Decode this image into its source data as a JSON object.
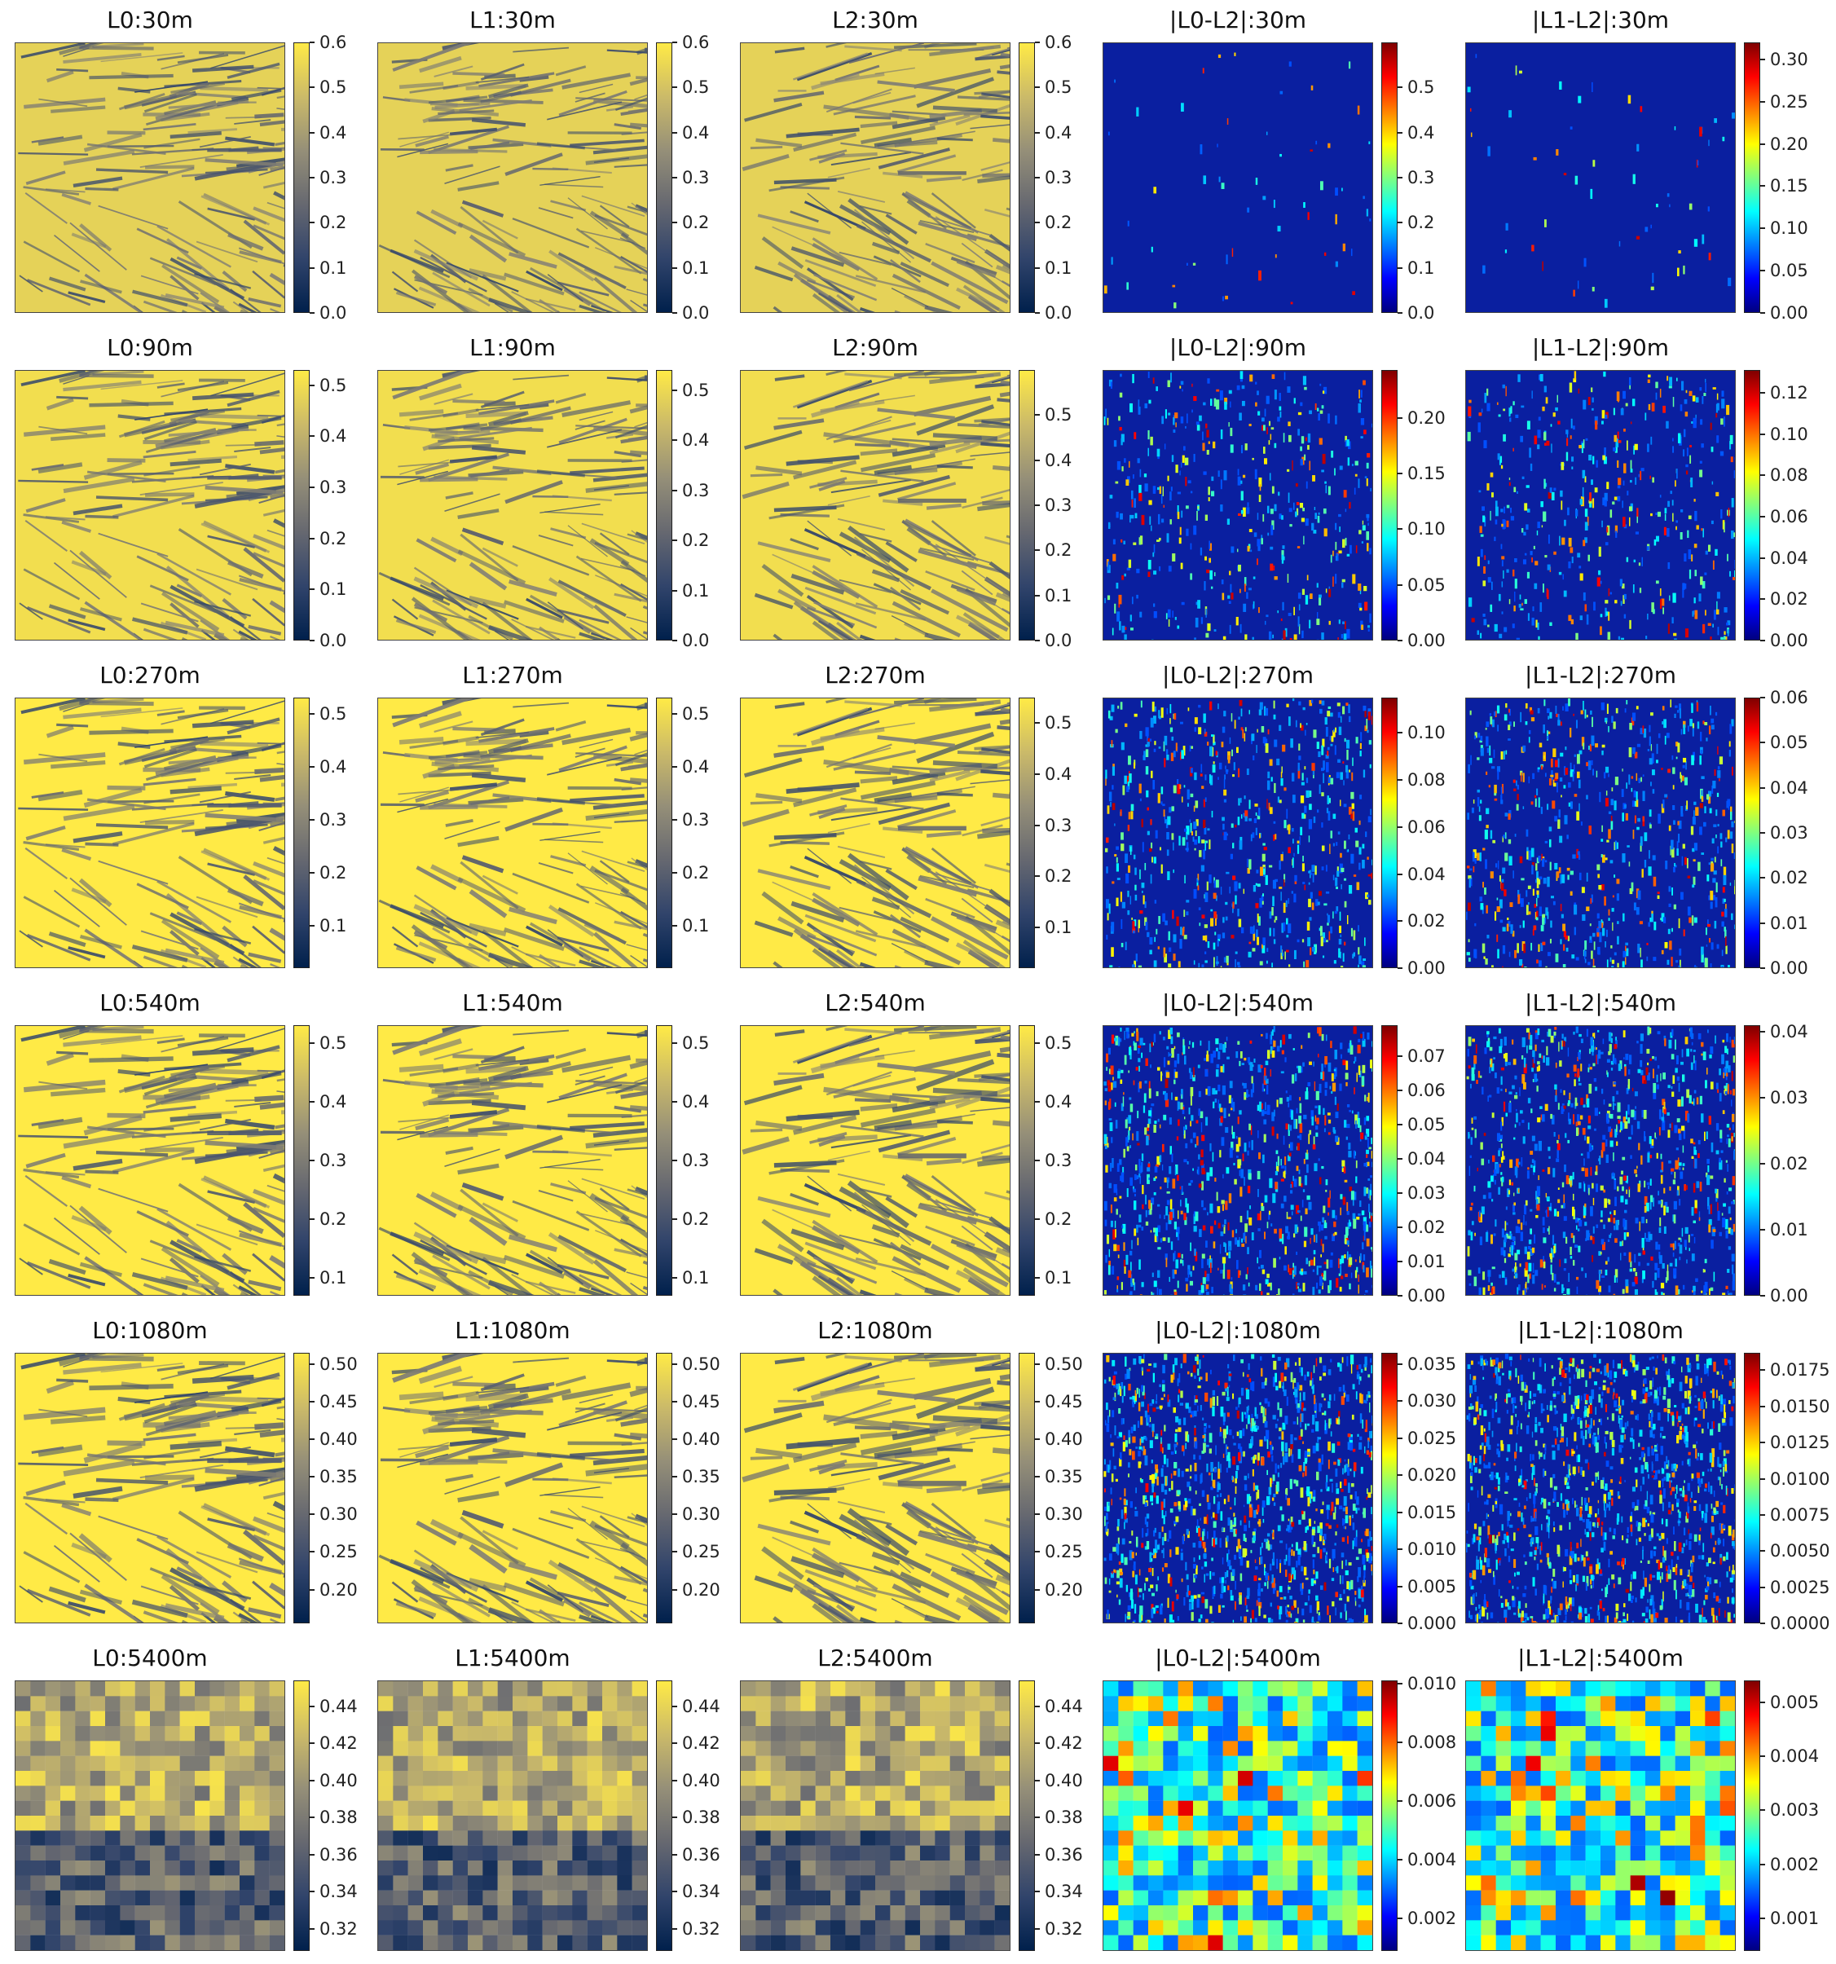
{
  "colors": {
    "cividis": [
      "#00204c",
      "#31446b",
      "#666870",
      "#958f78",
      "#cbba69",
      "#ffea46"
    ],
    "jet": [
      "#00007f",
      "#0000ff",
      "#007fff",
      "#00ffff",
      "#7fff7f",
      "#ffff00",
      "#ff7f00",
      "#ff0000",
      "#7f0000"
    ]
  },
  "chart_data": [
    {
      "type": "heatmap",
      "title": "L0:30m",
      "colormap": "cividis",
      "ticks": [
        "0.0",
        "0.1",
        "0.2",
        "0.3",
        "0.4",
        "0.5",
        "0.6"
      ],
      "tick_values": [
        0,
        0.1,
        0.2,
        0.3,
        0.4,
        0.5,
        0.6
      ],
      "vmin": 0,
      "vmax": 0.6
    },
    {
      "type": "heatmap",
      "title": "L1:30m",
      "colormap": "cividis",
      "ticks": [
        "0.0",
        "0.1",
        "0.2",
        "0.3",
        "0.4",
        "0.5",
        "0.6"
      ],
      "tick_values": [
        0,
        0.1,
        0.2,
        0.3,
        0.4,
        0.5,
        0.6
      ],
      "vmin": 0,
      "vmax": 0.6
    },
    {
      "type": "heatmap",
      "title": "L2:30m",
      "colormap": "cividis",
      "ticks": [
        "0.0",
        "0.1",
        "0.2",
        "0.3",
        "0.4",
        "0.5",
        "0.6"
      ],
      "tick_values": [
        0,
        0.1,
        0.2,
        0.3,
        0.4,
        0.5,
        0.6
      ],
      "vmin": 0,
      "vmax": 0.6
    },
    {
      "type": "heatmap",
      "title": "|L0-L2|:30m",
      "colormap": "jet",
      "ticks": [
        "0.0",
        "0.1",
        "0.2",
        "0.3",
        "0.4",
        "0.5"
      ],
      "tick_values": [
        0,
        0.1,
        0.2,
        0.3,
        0.4,
        0.5
      ],
      "vmin": 0,
      "vmax": 0.6
    },
    {
      "type": "heatmap",
      "title": "|L1-L2|:30m",
      "colormap": "jet",
      "ticks": [
        "0.00",
        "0.05",
        "0.10",
        "0.15",
        "0.20",
        "0.25",
        "0.30"
      ],
      "tick_values": [
        0,
        0.05,
        0.1,
        0.15,
        0.2,
        0.25,
        0.3
      ],
      "vmin": 0,
      "vmax": 0.32
    },
    {
      "type": "heatmap",
      "title": "L0:90m",
      "colormap": "cividis",
      "ticks": [
        "0.0",
        "0.1",
        "0.2",
        "0.3",
        "0.4",
        "0.5"
      ],
      "tick_values": [
        0,
        0.1,
        0.2,
        0.3,
        0.4,
        0.5
      ],
      "vmin": 0,
      "vmax": 0.53
    },
    {
      "type": "heatmap",
      "title": "L1:90m",
      "colormap": "cividis",
      "ticks": [
        "0.0",
        "0.1",
        "0.2",
        "0.3",
        "0.4",
        "0.5"
      ],
      "tick_values": [
        0,
        0.1,
        0.2,
        0.3,
        0.4,
        0.5
      ],
      "vmin": 0,
      "vmax": 0.54
    },
    {
      "type": "heatmap",
      "title": "L2:90m",
      "colormap": "cividis",
      "ticks": [
        "0.0",
        "0.1",
        "0.2",
        "0.3",
        "0.4",
        "0.5"
      ],
      "tick_values": [
        0,
        0.1,
        0.2,
        0.3,
        0.4,
        0.5
      ],
      "vmin": 0,
      "vmax": 0.6
    },
    {
      "type": "heatmap",
      "title": "|L0-L2|:90m",
      "colormap": "jet",
      "ticks": [
        "0.00",
        "0.05",
        "0.10",
        "0.15",
        "0.20"
      ],
      "tick_values": [
        0,
        0.05,
        0.1,
        0.15,
        0.2
      ],
      "vmin": 0,
      "vmax": 0.243
    },
    {
      "type": "heatmap",
      "title": "|L1-L2|:90m",
      "colormap": "jet",
      "ticks": [
        "0.00",
        "0.02",
        "0.04",
        "0.06",
        "0.08",
        "0.10",
        "0.12"
      ],
      "tick_values": [
        0,
        0.02,
        0.04,
        0.06,
        0.08,
        0.1,
        0.12
      ],
      "vmin": 0,
      "vmax": 0.131
    },
    {
      "type": "heatmap",
      "title": "L0:270m",
      "colormap": "cividis",
      "ticks": [
        "0.1",
        "0.2",
        "0.3",
        "0.4",
        "0.5"
      ],
      "tick_values": [
        0.1,
        0.2,
        0.3,
        0.4,
        0.5
      ],
      "vmin": 0.02,
      "vmax": 0.53
    },
    {
      "type": "heatmap",
      "title": "L1:270m",
      "colormap": "cividis",
      "ticks": [
        "0.1",
        "0.2",
        "0.3",
        "0.4",
        "0.5"
      ],
      "tick_values": [
        0.1,
        0.2,
        0.3,
        0.4,
        0.5
      ],
      "vmin": 0.02,
      "vmax": 0.53
    },
    {
      "type": "heatmap",
      "title": "L2:270m",
      "colormap": "cividis",
      "ticks": [
        "0.1",
        "0.2",
        "0.3",
        "0.4",
        "0.5"
      ],
      "tick_values": [
        0.1,
        0.2,
        0.3,
        0.4,
        0.5
      ],
      "vmin": 0.02,
      "vmax": 0.55
    },
    {
      "type": "heatmap",
      "title": "|L0-L2|:270m",
      "colormap": "jet",
      "ticks": [
        "0.00",
        "0.02",
        "0.04",
        "0.06",
        "0.08",
        "0.10"
      ],
      "tick_values": [
        0,
        0.02,
        0.04,
        0.06,
        0.08,
        0.1
      ],
      "vmin": 0,
      "vmax": 0.115
    },
    {
      "type": "heatmap",
      "title": "|L1-L2|:270m",
      "colormap": "jet",
      "ticks": [
        "0.00",
        "0.01",
        "0.02",
        "0.03",
        "0.04",
        "0.05",
        "0.06"
      ],
      "tick_values": [
        0,
        0.01,
        0.02,
        0.03,
        0.04,
        0.05,
        0.06
      ],
      "vmin": 0,
      "vmax": 0.06
    },
    {
      "type": "heatmap",
      "title": "L0:540m",
      "colormap": "cividis",
      "ticks": [
        "0.1",
        "0.2",
        "0.3",
        "0.4",
        "0.5"
      ],
      "tick_values": [
        0.1,
        0.2,
        0.3,
        0.4,
        0.5
      ],
      "vmin": 0.07,
      "vmax": 0.53
    },
    {
      "type": "heatmap",
      "title": "L1:540m",
      "colormap": "cividis",
      "ticks": [
        "0.1",
        "0.2",
        "0.3",
        "0.4",
        "0.5"
      ],
      "tick_values": [
        0.1,
        0.2,
        0.3,
        0.4,
        0.5
      ],
      "vmin": 0.07,
      "vmax": 0.53
    },
    {
      "type": "heatmap",
      "title": "L2:540m",
      "colormap": "cividis",
      "ticks": [
        "0.1",
        "0.2",
        "0.3",
        "0.4",
        "0.5"
      ],
      "tick_values": [
        0.1,
        0.2,
        0.3,
        0.4,
        0.5
      ],
      "vmin": 0.07,
      "vmax": 0.53
    },
    {
      "type": "heatmap",
      "title": "|L0-L2|:540m",
      "colormap": "jet",
      "ticks": [
        "0.00",
        "0.01",
        "0.02",
        "0.03",
        "0.04",
        "0.05",
        "0.06",
        "0.07"
      ],
      "tick_values": [
        0,
        0.01,
        0.02,
        0.03,
        0.04,
        0.05,
        0.06,
        0.07
      ],
      "vmin": 0,
      "vmax": 0.079
    },
    {
      "type": "heatmap",
      "title": "|L1-L2|:540m",
      "colormap": "jet",
      "ticks": [
        "0.00",
        "0.01",
        "0.02",
        "0.03",
        "0.04"
      ],
      "tick_values": [
        0,
        0.01,
        0.02,
        0.03,
        0.04
      ],
      "vmin": 0,
      "vmax": 0.041
    },
    {
      "type": "heatmap",
      "title": "L0:1080m",
      "colormap": "cividis",
      "ticks": [
        "0.20",
        "0.25",
        "0.30",
        "0.35",
        "0.40",
        "0.45",
        "0.50"
      ],
      "tick_values": [
        0.2,
        0.25,
        0.3,
        0.35,
        0.4,
        0.45,
        0.5
      ],
      "vmin": 0.155,
      "vmax": 0.515
    },
    {
      "type": "heatmap",
      "title": "L1:1080m",
      "colormap": "cividis",
      "ticks": [
        "0.20",
        "0.25",
        "0.30",
        "0.35",
        "0.40",
        "0.45",
        "0.50"
      ],
      "tick_values": [
        0.2,
        0.25,
        0.3,
        0.35,
        0.4,
        0.45,
        0.5
      ],
      "vmin": 0.155,
      "vmax": 0.515
    },
    {
      "type": "heatmap",
      "title": "L2:1080m",
      "colormap": "cividis",
      "ticks": [
        "0.20",
        "0.25",
        "0.30",
        "0.35",
        "0.40",
        "0.45",
        "0.50"
      ],
      "tick_values": [
        0.2,
        0.25,
        0.3,
        0.35,
        0.4,
        0.45,
        0.5
      ],
      "vmin": 0.155,
      "vmax": 0.515
    },
    {
      "type": "heatmap",
      "title": "|L0-L2|:1080m",
      "colormap": "jet",
      "ticks": [
        "0.000",
        "0.005",
        "0.010",
        "0.015",
        "0.020",
        "0.025",
        "0.030",
        "0.035"
      ],
      "tick_values": [
        0,
        0.005,
        0.01,
        0.015,
        0.02,
        0.025,
        0.03,
        0.035
      ],
      "vmin": 0,
      "vmax": 0.0365
    },
    {
      "type": "heatmap",
      "title": "|L1-L2|:1080m",
      "colormap": "jet",
      "ticks": [
        "0.0000",
        "0.0025",
        "0.0050",
        "0.0075",
        "0.0100",
        "0.0125",
        "0.0150",
        "0.0175"
      ],
      "tick_values": [
        0,
        0.0025,
        0.005,
        0.0075,
        0.01,
        0.0125,
        0.015,
        0.0175
      ],
      "vmin": 0,
      "vmax": 0.0187
    },
    {
      "type": "heatmap",
      "title": "L0:5400m",
      "colormap": "cividis",
      "ticks": [
        "0.32",
        "0.34",
        "0.36",
        "0.38",
        "0.40",
        "0.42",
        "0.44"
      ],
      "tick_values": [
        0.32,
        0.34,
        0.36,
        0.38,
        0.4,
        0.42,
        0.44
      ],
      "vmin": 0.308,
      "vmax": 0.454
    },
    {
      "type": "heatmap",
      "title": "L1:5400m",
      "colormap": "cividis",
      "ticks": [
        "0.32",
        "0.34",
        "0.36",
        "0.38",
        "0.40",
        "0.42",
        "0.44"
      ],
      "tick_values": [
        0.32,
        0.34,
        0.36,
        0.38,
        0.4,
        0.42,
        0.44
      ],
      "vmin": 0.308,
      "vmax": 0.454
    },
    {
      "type": "heatmap",
      "title": "L2:5400m",
      "colormap": "cividis",
      "ticks": [
        "0.32",
        "0.34",
        "0.36",
        "0.38",
        "0.40",
        "0.42",
        "0.44"
      ],
      "tick_values": [
        0.32,
        0.34,
        0.36,
        0.38,
        0.4,
        0.42,
        0.44
      ],
      "vmin": 0.308,
      "vmax": 0.454
    },
    {
      "type": "heatmap",
      "title": "|L0-L2|:5400m",
      "colormap": "jet",
      "ticks": [
        "0.002",
        "0.004",
        "0.006",
        "0.008",
        "0.010"
      ],
      "tick_values": [
        0.002,
        0.004,
        0.006,
        0.008,
        0.01
      ],
      "vmin": 0.0009,
      "vmax": 0.0101
    },
    {
      "type": "heatmap",
      "title": "|L1-L2|:5400m",
      "colormap": "jet",
      "ticks": [
        "0.001",
        "0.002",
        "0.003",
        "0.004",
        "0.005"
      ],
      "tick_values": [
        0.001,
        0.002,
        0.003,
        0.004,
        0.005
      ],
      "vmin": 0.0004,
      "vmax": 0.0054
    }
  ]
}
